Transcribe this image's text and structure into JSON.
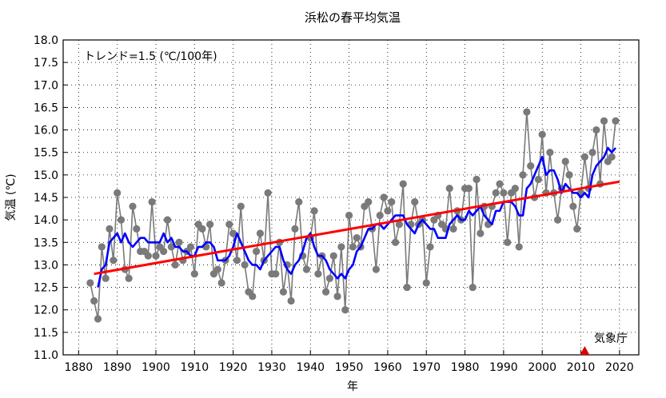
{
  "chart_data": {
    "type": "line",
    "title": "浜松の春平均気温",
    "xlabel": "年",
    "ylabel": "気温 (℃)",
    "annotation": "トレンド=1.5 (℃/100年)",
    "source_label": "気象庁",
    "xlim": [
      1876,
      2025
    ],
    "ylim": [
      11.0,
      18.0
    ],
    "x_ticks": [
      1880,
      1890,
      1900,
      1910,
      1920,
      1930,
      1940,
      1950,
      1960,
      1970,
      1980,
      1990,
      2000,
      2010,
      2020
    ],
    "y_ticks": [
      11.0,
      11.5,
      12.0,
      12.5,
      13.0,
      13.5,
      14.0,
      14.5,
      15.0,
      15.5,
      16.0,
      16.5,
      17.0,
      17.5,
      18.0
    ],
    "grid": true,
    "colors": {
      "annual": "#7a7a7a",
      "moving_average": "#0000ff",
      "trend": "#ff0000",
      "marker": "#dd0000"
    },
    "marker_year": 2011,
    "start_year": 1883,
    "series": [
      {
        "values": [
          12.6,
          12.2,
          11.8,
          13.4,
          12.7,
          13.8,
          13.1,
          14.6,
          14.0,
          12.9,
          12.7,
          14.3,
          13.8,
          13.3,
          13.3,
          13.2,
          14.4,
          13.2,
          13.4,
          13.3,
          14.0,
          13.4,
          13.0,
          13.5,
          13.1,
          13.3,
          13.4,
          12.8,
          13.9,
          13.8,
          13.4,
          13.9,
          12.8,
          12.9,
          12.6,
          13.1,
          13.9,
          13.7,
          13.1,
          14.3,
          13.0,
          12.4,
          12.3,
          13.3,
          13.7,
          13.1,
          14.6,
          12.8,
          12.8,
          13.5,
          12.4,
          13.0,
          12.2,
          13.8,
          14.4,
          13.2,
          12.9,
          13.6,
          14.2,
          12.8,
          13.2,
          12.4,
          12.7,
          13.2,
          12.3,
          13.4,
          12.0,
          14.1,
          13.4,
          13.6,
          13.4,
          14.3,
          14.4,
          13.8,
          12.9,
          14.1,
          14.5,
          14.2,
          14.4,
          13.5,
          13.9,
          14.8,
          12.5,
          13.9,
          14.4,
          13.9,
          14.0,
          12.6,
          13.4,
          14.0,
          14.1,
          13.9,
          13.8,
          14.7,
          13.8,
          14.2,
          14.0,
          14.7,
          14.7,
          12.5,
          14.9,
          13.7,
          14.3,
          13.9,
          14.3,
          14.6,
          14.8,
          14.6,
          13.5,
          14.6,
          14.7,
          13.4,
          15.0,
          16.4,
          15.2,
          14.5,
          14.9,
          15.9,
          14.6,
          15.5,
          14.6,
          14.0,
          14.7,
          15.3,
          15.0,
          14.3,
          13.8,
          14.6,
          15.4,
          14.7,
          15.5,
          16.0,
          14.8,
          16.2,
          15.3,
          15.4,
          16.2
        ]
      },
      {
        "start_year": 1885,
        "values": [
          12.5,
          12.9,
          13.0,
          13.5,
          13.6,
          13.7,
          13.5,
          13.7,
          13.5,
          13.4,
          13.5,
          13.6,
          13.6,
          13.5,
          13.5,
          13.5,
          13.5,
          13.7,
          13.5,
          13.6,
          13.4,
          13.4,
          13.3,
          13.3,
          13.2,
          13.2,
          13.4,
          13.4,
          13.5,
          13.5,
          13.4,
          13.1,
          13.1,
          13.1,
          13.2,
          13.4,
          13.7,
          13.5,
          13.3,
          13.1,
          13.0,
          13.0,
          12.9,
          13.1,
          13.2,
          13.3,
          13.4,
          13.4,
          13.1,
          12.9,
          12.8,
          13.0,
          13.1,
          13.3,
          13.6,
          13.7,
          13.4,
          13.2,
          13.2,
          13.1,
          12.9,
          12.8,
          12.7,
          12.8,
          12.7,
          12.9,
          13.0,
          13.3,
          13.4,
          13.6,
          13.8,
          13.8,
          13.9,
          13.9,
          13.8,
          13.9,
          14.0,
          14.1,
          14.1,
          14.1,
          13.9,
          13.8,
          13.7,
          13.9,
          14.0,
          13.9,
          13.8,
          13.8,
          13.6,
          13.6,
          13.6,
          13.9,
          14.0,
          14.1,
          14.0,
          14.0,
          14.2,
          14.1,
          14.2,
          14.3,
          14.1,
          14.0,
          13.9,
          14.2,
          14.2,
          14.4,
          14.4,
          14.4,
          14.3,
          14.1,
          14.1,
          14.7,
          14.8,
          15.0,
          15.2,
          15.4,
          15.0,
          15.1,
          15.1,
          14.9,
          14.6,
          14.8,
          14.7,
          14.6,
          14.6,
          14.5,
          14.6,
          14.5,
          15.0,
          15.2,
          15.3,
          15.4,
          15.6,
          15.5,
          15.6
        ]
      },
      {
        "x": [
          1884,
          2020
        ],
        "values": [
          12.8,
          14.85
        ]
      }
    ]
  }
}
